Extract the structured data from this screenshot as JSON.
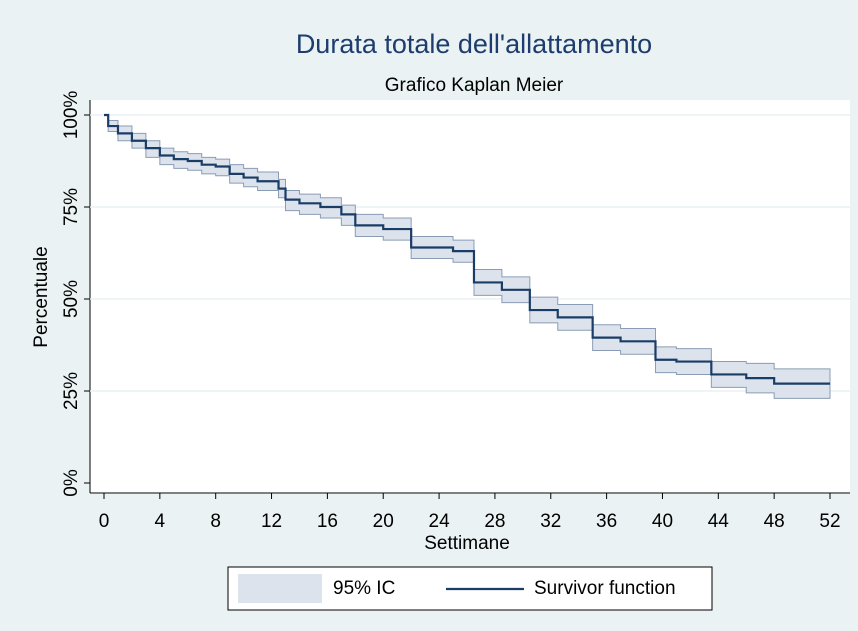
{
  "chart_data": {
    "type": "step",
    "title": "Durata totale dell'allattamento",
    "subtitle": "Grafico Kaplan Meier",
    "x_label": "Settimane",
    "y_label": "Percentuale",
    "x": [
      0,
      0.3,
      1,
      2,
      3,
      4,
      5,
      6,
      7,
      8,
      9,
      10,
      11,
      12.5,
      13,
      14,
      15.5,
      17,
      18,
      20,
      22,
      25,
      26.5,
      28.5,
      30.5,
      32.5,
      35,
      37,
      39.5,
      41,
      43.5,
      46,
      48,
      52
    ],
    "series": [
      {
        "name": "Survivor function",
        "color": "#1a3d66",
        "values": [
          100,
          97,
          95,
          93,
          91,
          89,
          88,
          87.5,
          86.5,
          86,
          84,
          83,
          82,
          80,
          77,
          76,
          75,
          73,
          70,
          69,
          64,
          63,
          54.5,
          52.5,
          47,
          45,
          39.5,
          38.5,
          33.5,
          33,
          29.5,
          28.5,
          27,
          27
        ]
      }
    ],
    "ci": {
      "name": "95% IC",
      "color": "#dde3ec",
      "upper": [
        100,
        98.5,
        97,
        95,
        93,
        91,
        90,
        89.5,
        88.5,
        88,
        86.5,
        85.5,
        84.5,
        82.5,
        79.5,
        78.5,
        77.5,
        75.5,
        73,
        72,
        67,
        66,
        58,
        56,
        50.5,
        48.5,
        43,
        42,
        37,
        36.5,
        33,
        32.5,
        31,
        31
      ],
      "lower": [
        100,
        95.5,
        93,
        91,
        88.5,
        86.5,
        85.5,
        85,
        84,
        83.5,
        81.5,
        80.5,
        79.5,
        77.5,
        74,
        73,
        72,
        70,
        67,
        66,
        61,
        60,
        51,
        49,
        43.5,
        41.5,
        36,
        35,
        30,
        29.5,
        26,
        24.5,
        23,
        23
      ]
    },
    "xlim": [
      0,
      52
    ],
    "xticks": [
      0,
      4,
      8,
      12,
      16,
      20,
      24,
      28,
      32,
      36,
      40,
      44,
      48,
      52
    ],
    "ylim": [
      0,
      100
    ],
    "yticks": [
      {
        "value": 0,
        "label": "0%"
      },
      {
        "value": 25,
        "label": "25%"
      },
      {
        "value": 50,
        "label": "50%"
      },
      {
        "value": 75,
        "label": "75%"
      },
      {
        "value": 100,
        "label": "100%"
      }
    ],
    "grid": true
  }
}
